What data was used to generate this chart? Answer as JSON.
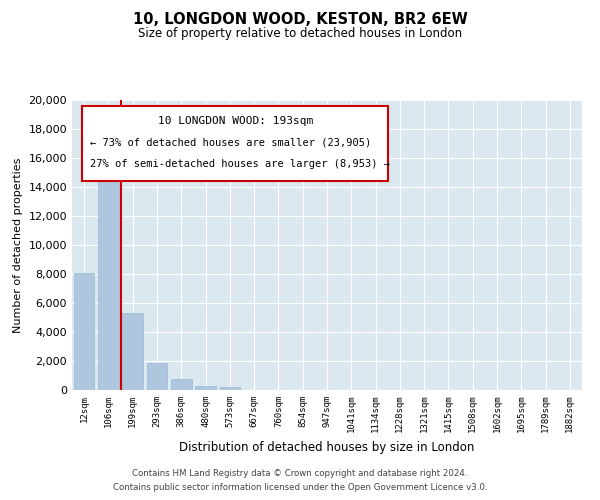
{
  "title": "10, LONGDON WOOD, KESTON, BR2 6EW",
  "subtitle": "Size of property relative to detached houses in London",
  "xlabel": "Distribution of detached houses by size in London",
  "ylabel": "Number of detached properties",
  "categories": [
    "12sqm",
    "106sqm",
    "199sqm",
    "293sqm",
    "386sqm",
    "480sqm",
    "573sqm",
    "667sqm",
    "760sqm",
    "854sqm",
    "947sqm",
    "1041sqm",
    "1134sqm",
    "1228sqm",
    "1321sqm",
    "1415sqm",
    "1508sqm",
    "1602sqm",
    "1695sqm",
    "1789sqm",
    "1882sqm"
  ],
  "values": [
    8100,
    16600,
    5300,
    1850,
    750,
    280,
    200,
    0,
    0,
    0,
    0,
    0,
    0,
    0,
    0,
    0,
    0,
    0,
    0,
    0,
    0
  ],
  "bar_color": "#aec6de",
  "bar_edge_color": "#9ab8d4",
  "ylim": [
    0,
    20000
  ],
  "yticks": [
    0,
    2000,
    4000,
    6000,
    8000,
    10000,
    12000,
    14000,
    16000,
    18000,
    20000
  ],
  "property_line_color": "#cc0000",
  "property_line_index": 1.5,
  "annotation_title": "10 LONGDON WOOD: 193sqm",
  "annotation_line1": "← 73% of detached houses are smaller (23,905)",
  "annotation_line2": "27% of semi-detached houses are larger (8,953) →",
  "annotation_box_edgecolor": "#cc0000",
  "annotation_box_facecolor": "#ffffff",
  "background_color": "#dce8f0",
  "grid_color": "#ffffff",
  "footer_line1": "Contains HM Land Registry data © Crown copyright and database right 2024.",
  "footer_line2": "Contains public sector information licensed under the Open Government Licence v3.0."
}
